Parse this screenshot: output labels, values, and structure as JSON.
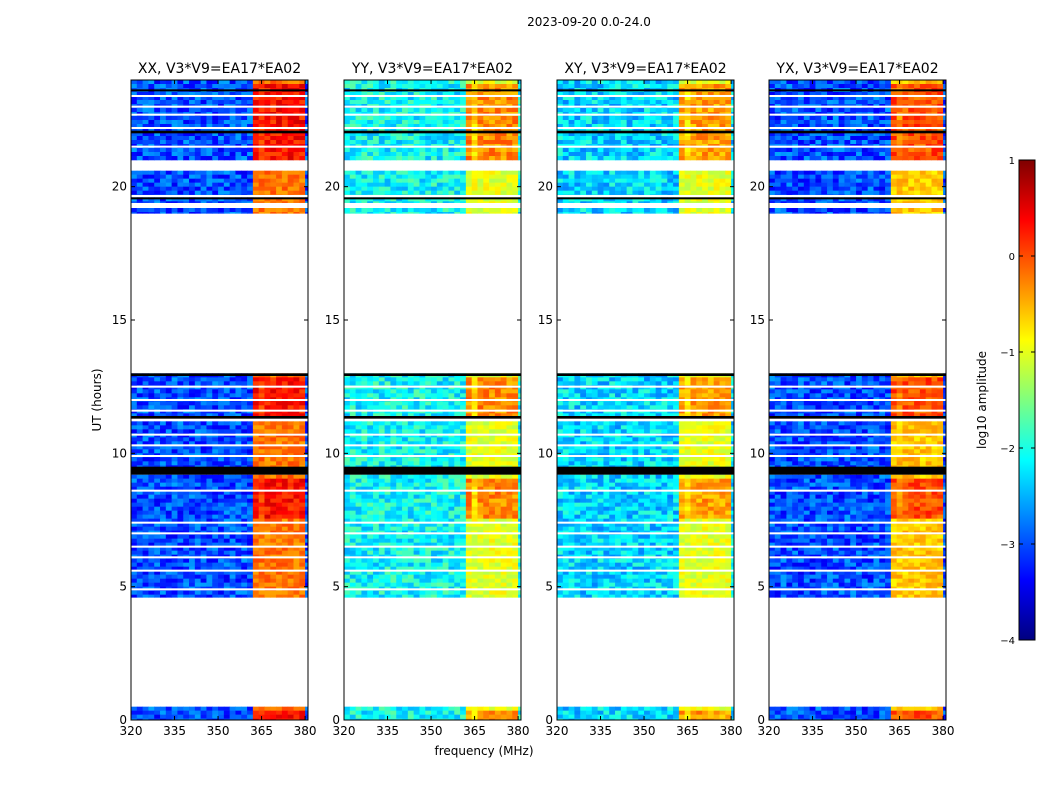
{
  "chart_data": {
    "type": "heatmap",
    "title": "2023-09-20 0.0-24.0",
    "xlabel": "frequency (MHz)",
    "ylabel": "UT (hours)",
    "xlim": [
      320,
      381
    ],
    "ylim": [
      0,
      24
    ],
    "x_ticks": [
      320,
      335,
      350,
      365,
      380
    ],
    "y_ticks": [
      0,
      5,
      10,
      15,
      20
    ],
    "colorbar": {
      "label": "log10 amplitude",
      "range": [
        -4,
        1
      ],
      "ticks": [
        1,
        0,
        -1,
        -2,
        -3,
        -4
      ],
      "colors": [
        "#00007f",
        "#0000ff",
        "#007fff",
        "#00ffff",
        "#7fff7f",
        "#ffff00",
        "#ff7f00",
        "#ff0000",
        "#7f0000"
      ]
    },
    "panels": [
      {
        "name": "XX",
        "title": "XX, V3*V9=EA17*EA02",
        "background_level": -3.0,
        "band_level": -0.2,
        "rfi_peak_level": 0.3
      },
      {
        "name": "YY",
        "title": "YY, V3*V9=EA17*EA02",
        "background_level": -2.1,
        "band_level": -1.0,
        "rfi_peak_level": -0.3
      },
      {
        "name": "XY",
        "title": "XY, V3*V9=EA17*EA02",
        "background_level": -2.3,
        "band_level": -1.0,
        "rfi_peak_level": -0.4
      },
      {
        "name": "YX",
        "title": "YX, V3*V9=EA17*EA02",
        "background_level": -3.0,
        "band_level": -0.6,
        "rfi_peak_level": 0.0
      }
    ],
    "rfi_band_mhz": [
      361,
      378.5
    ],
    "rfi_channels_mhz": [
      362,
      366.5,
      369.5,
      373,
      376.5
    ],
    "data_segments_hours": [
      [
        0,
        0.5
      ],
      [
        4.6,
        9.2
      ],
      [
        9.5,
        11.2
      ],
      [
        11.4,
        13.0
      ],
      [
        19.0,
        19.2
      ],
      [
        19.4,
        19.6
      ],
      [
        19.7,
        20.6
      ],
      [
        21.0,
        24.0
      ]
    ],
    "flagged_lines_hours": [
      4.9,
      5.6,
      6.1,
      6.5,
      7.0,
      7.4,
      8.6,
      9.9,
      10.3,
      10.7,
      11.3,
      11.6,
      12.0,
      12.5,
      21.5,
      22.2,
      22.7,
      23.0,
      23.4
    ],
    "strong_rfi_hours": [
      [
        7.6,
        9.2
      ],
      [
        11.4,
        13.0
      ],
      [
        21.0,
        24.0
      ],
      [
        0,
        0.5
      ]
    ],
    "black_gaps_hours": [
      [
        9.2,
        9.5
      ],
      [
        11.3,
        11.4
      ],
      [
        12.9,
        13.0
      ],
      [
        19.55,
        19.6
      ],
      [
        22.0,
        22.1
      ],
      [
        23.6,
        23.65
      ]
    ]
  }
}
